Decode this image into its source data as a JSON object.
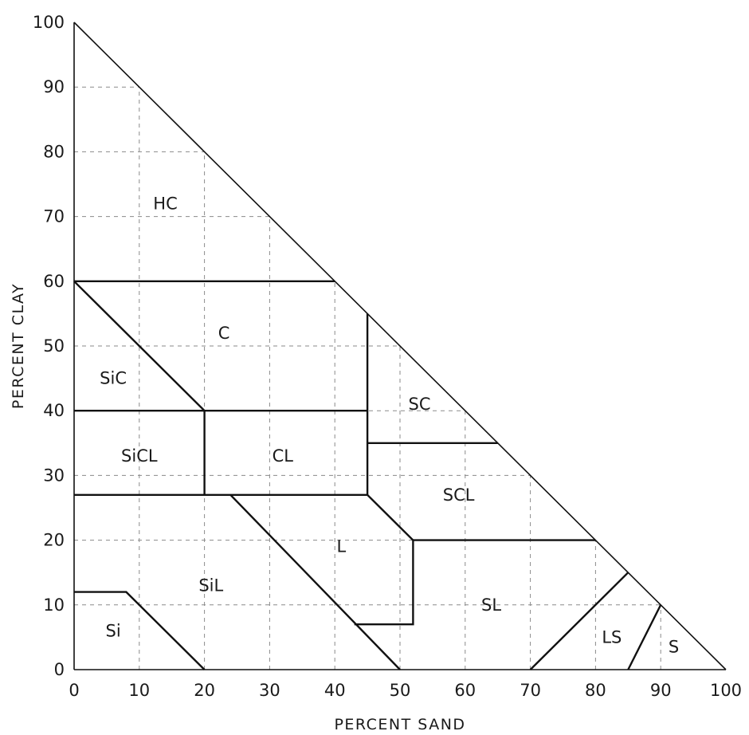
{
  "chart_data": {
    "type": "ternary-texture-diagram",
    "title": "",
    "xlabel": "PERCENT SAND",
    "ylabel": "PERCENT CLAY",
    "xlim": [
      0,
      100
    ],
    "ylim": [
      0,
      100
    ],
    "x_ticks": [
      "0",
      "10",
      "20",
      "30",
      "40",
      "50",
      "60",
      "70",
      "80",
      "90",
      "100"
    ],
    "y_ticks": [
      "0",
      "10",
      "20",
      "30",
      "40",
      "50",
      "60",
      "70",
      "80",
      "90",
      "100"
    ],
    "grid": true,
    "regions": [
      {
        "label": "HC",
        "label_at": [
          14,
          72
        ]
      },
      {
        "label": "C",
        "label_at": [
          23,
          52
        ]
      },
      {
        "label": "SiC",
        "label_at": [
          6,
          45
        ]
      },
      {
        "label": "SiCL",
        "label_at": [
          10,
          33
        ]
      },
      {
        "label": "CL",
        "label_at": [
          32,
          33
        ]
      },
      {
        "label": "SC",
        "label_at": [
          53,
          41
        ]
      },
      {
        "label": "SCL",
        "label_at": [
          59,
          27
        ]
      },
      {
        "label": "L",
        "label_at": [
          41,
          19
        ]
      },
      {
        "label": "SiL",
        "label_at": [
          21,
          13
        ]
      },
      {
        "label": "SL",
        "label_at": [
          64,
          10
        ]
      },
      {
        "label": "Si",
        "label_at": [
          6,
          6
        ]
      },
      {
        "label": "LS",
        "label_at": [
          82.5,
          5
        ]
      },
      {
        "label": "S",
        "label_at": [
          92,
          3.5
        ]
      }
    ],
    "boundaries": [
      [
        [
          0,
          60
        ],
        [
          40,
          60
        ]
      ],
      [
        [
          0,
          60
        ],
        [
          20,
          40
        ]
      ],
      [
        [
          0,
          40
        ],
        [
          45,
          40
        ]
      ],
      [
        [
          20,
          40
        ],
        [
          20,
          27
        ]
      ],
      [
        [
          45,
          55
        ],
        [
          45,
          27
        ]
      ],
      [
        [
          45,
          35
        ],
        [
          65,
          35
        ]
      ],
      [
        [
          0,
          27
        ],
        [
          45,
          27
        ],
        [
          52,
          20
        ],
        [
          52,
          7
        ],
        [
          43,
          7
        ]
      ],
      [
        [
          24,
          27
        ],
        [
          50,
          0
        ]
      ],
      [
        [
          52,
          20
        ],
        [
          80,
          20
        ]
      ],
      [
        [
          0,
          12
        ],
        [
          8,
          12
        ],
        [
          20,
          0
        ]
      ],
      [
        [
          70,
          0
        ],
        [
          85,
          15
        ]
      ],
      [
        [
          85,
          0
        ],
        [
          90,
          10
        ]
      ]
    ]
  }
}
